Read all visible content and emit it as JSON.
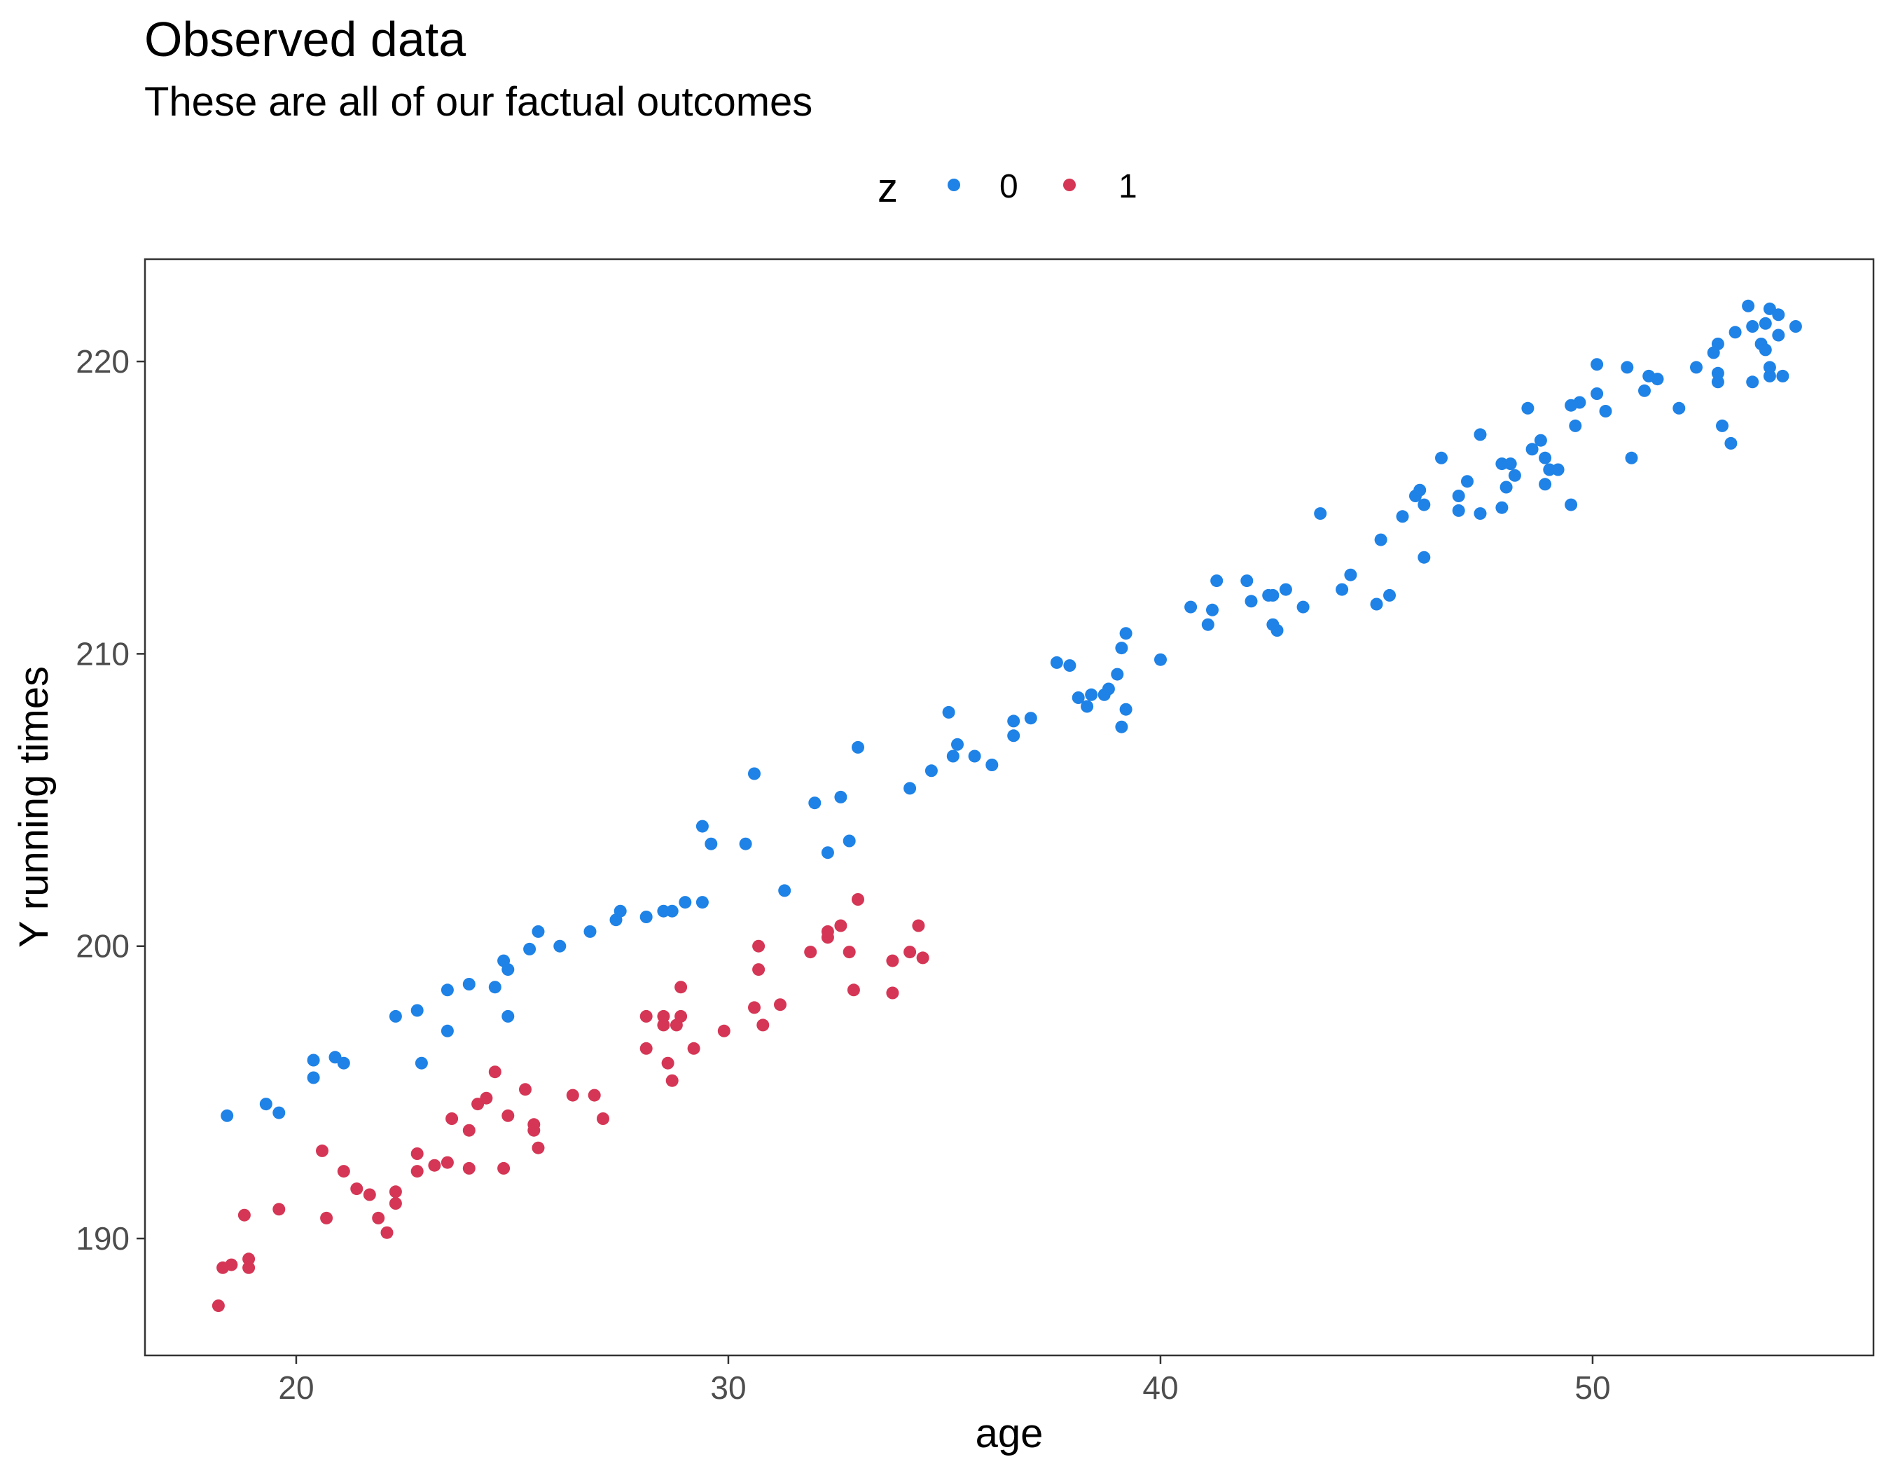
{
  "chart_data": {
    "type": "scatter",
    "title": "Observed data",
    "subtitle": "These are all of our factual outcomes",
    "xlabel": "age",
    "ylabel": "Y running times",
    "xlim": [
      16.5,
      56.5
    ],
    "ylim": [
      186.0,
      223.5
    ],
    "xticks": [
      20,
      30,
      40,
      50
    ],
    "yticks": [
      190,
      200,
      210,
      220
    ],
    "grid": false,
    "legend": {
      "title": "z",
      "position": "top"
    },
    "series": [
      {
        "name": "0",
        "color": "#1e82e6",
        "points": [
          [
            18.4,
            194.2
          ],
          [
            19.3,
            194.6
          ],
          [
            19.6,
            194.3
          ],
          [
            20.4,
            195.5
          ],
          [
            20.4,
            196.1
          ],
          [
            20.9,
            196.2
          ],
          [
            21.1,
            196.0
          ],
          [
            22.3,
            197.6
          ],
          [
            22.8,
            197.8
          ],
          [
            22.9,
            196.0
          ],
          [
            23.5,
            197.1
          ],
          [
            23.5,
            198.5
          ],
          [
            24.0,
            198.7
          ],
          [
            24.6,
            198.6
          ],
          [
            24.8,
            199.5
          ],
          [
            24.9,
            199.2
          ],
          [
            24.9,
            197.6
          ],
          [
            25.4,
            199.9
          ],
          [
            25.6,
            200.5
          ],
          [
            26.1,
            200.0
          ],
          [
            26.8,
            200.5
          ],
          [
            27.4,
            200.9
          ],
          [
            27.5,
            201.2
          ],
          [
            28.1,
            201.0
          ],
          [
            28.5,
            201.2
          ],
          [
            28.7,
            201.2
          ],
          [
            29.0,
            201.5
          ],
          [
            29.4,
            201.5
          ],
          [
            29.4,
            204.1
          ],
          [
            29.6,
            203.5
          ],
          [
            30.4,
            203.5
          ],
          [
            30.6,
            205.9
          ],
          [
            31.3,
            201.9
          ],
          [
            32.0,
            204.9
          ],
          [
            32.3,
            203.2
          ],
          [
            32.6,
            205.1
          ],
          [
            32.8,
            203.6
          ],
          [
            33.0,
            206.8
          ],
          [
            34.2,
            205.4
          ],
          [
            34.7,
            206.0
          ],
          [
            35.1,
            208.0
          ],
          [
            35.2,
            206.5
          ],
          [
            35.3,
            206.9
          ],
          [
            35.7,
            206.5
          ],
          [
            36.1,
            206.2
          ],
          [
            36.6,
            207.7
          ],
          [
            36.6,
            207.2
          ],
          [
            37.0,
            207.8
          ],
          [
            37.6,
            209.7
          ],
          [
            37.9,
            209.6
          ],
          [
            38.1,
            208.5
          ],
          [
            38.3,
            208.2
          ],
          [
            38.4,
            208.6
          ],
          [
            38.7,
            208.6
          ],
          [
            38.8,
            208.8
          ],
          [
            39.0,
            209.3
          ],
          [
            39.1,
            210.2
          ],
          [
            39.1,
            207.5
          ],
          [
            39.2,
            208.1
          ],
          [
            39.2,
            210.7
          ],
          [
            40.0,
            209.8
          ],
          [
            40.7,
            211.6
          ],
          [
            41.1,
            211.0
          ],
          [
            41.2,
            211.5
          ],
          [
            41.3,
            212.5
          ],
          [
            42.0,
            212.5
          ],
          [
            42.1,
            211.8
          ],
          [
            42.5,
            212.0
          ],
          [
            42.6,
            212.0
          ],
          [
            42.6,
            211.0
          ],
          [
            42.7,
            210.8
          ],
          [
            42.9,
            212.2
          ],
          [
            43.3,
            211.6
          ],
          [
            43.7,
            214.8
          ],
          [
            44.2,
            212.2
          ],
          [
            44.4,
            212.7
          ],
          [
            45.0,
            211.7
          ],
          [
            45.1,
            213.9
          ],
          [
            45.3,
            212.0
          ],
          [
            45.6,
            214.7
          ],
          [
            45.9,
            215.4
          ],
          [
            46.0,
            215.6
          ],
          [
            46.1,
            215.1
          ],
          [
            46.1,
            213.3
          ],
          [
            46.5,
            216.7
          ],
          [
            46.9,
            215.4
          ],
          [
            46.9,
            214.9
          ],
          [
            47.1,
            215.9
          ],
          [
            47.4,
            214.8
          ],
          [
            47.4,
            217.5
          ],
          [
            47.9,
            216.5
          ],
          [
            47.9,
            215.0
          ],
          [
            48.0,
            215.7
          ],
          [
            48.1,
            216.5
          ],
          [
            48.2,
            216.1
          ],
          [
            48.5,
            218.4
          ],
          [
            48.6,
            217.0
          ],
          [
            48.8,
            217.3
          ],
          [
            48.9,
            216.7
          ],
          [
            48.9,
            215.8
          ],
          [
            49.0,
            216.3
          ],
          [
            49.2,
            216.3
          ],
          [
            49.5,
            218.5
          ],
          [
            49.5,
            215.1
          ],
          [
            49.6,
            217.8
          ],
          [
            49.7,
            218.6
          ],
          [
            50.1,
            219.9
          ],
          [
            50.1,
            218.9
          ],
          [
            50.3,
            218.3
          ],
          [
            50.8,
            219.8
          ],
          [
            50.9,
            216.7
          ],
          [
            51.2,
            219.0
          ],
          [
            51.3,
            219.5
          ],
          [
            51.5,
            219.4
          ],
          [
            52.0,
            218.4
          ],
          [
            52.4,
            219.8
          ],
          [
            52.8,
            220.3
          ],
          [
            52.9,
            219.3
          ],
          [
            52.9,
            220.6
          ],
          [
            52.9,
            219.6
          ],
          [
            53.0,
            217.8
          ],
          [
            53.2,
            217.2
          ],
          [
            53.3,
            221.0
          ],
          [
            53.6,
            221.9
          ],
          [
            53.7,
            221.2
          ],
          [
            53.7,
            219.3
          ],
          [
            53.9,
            220.6
          ],
          [
            54.0,
            221.3
          ],
          [
            54.0,
            220.4
          ],
          [
            54.1,
            219.8
          ],
          [
            54.1,
            221.8
          ],
          [
            54.1,
            219.5
          ],
          [
            54.3,
            221.6
          ],
          [
            54.3,
            220.9
          ],
          [
            54.4,
            219.5
          ],
          [
            54.7,
            221.2
          ]
        ]
      },
      {
        "name": "1",
        "color": "#d53655",
        "points": [
          [
            18.2,
            187.7
          ],
          [
            18.3,
            189.0
          ],
          [
            18.5,
            189.1
          ],
          [
            18.8,
            190.8
          ],
          [
            18.9,
            189.3
          ],
          [
            18.9,
            189.0
          ],
          [
            19.6,
            191.0
          ],
          [
            20.6,
            193.0
          ],
          [
            20.7,
            190.7
          ],
          [
            21.1,
            192.3
          ],
          [
            21.4,
            191.7
          ],
          [
            21.7,
            191.5
          ],
          [
            21.9,
            190.7
          ],
          [
            22.1,
            190.2
          ],
          [
            22.3,
            191.6
          ],
          [
            22.3,
            191.2
          ],
          [
            22.8,
            192.9
          ],
          [
            22.8,
            192.3
          ],
          [
            23.2,
            192.5
          ],
          [
            23.5,
            192.6
          ],
          [
            23.6,
            194.1
          ],
          [
            24.0,
            192.4
          ],
          [
            24.0,
            193.7
          ],
          [
            24.2,
            194.6
          ],
          [
            24.4,
            194.8
          ],
          [
            24.6,
            195.7
          ],
          [
            24.8,
            192.4
          ],
          [
            24.9,
            194.2
          ],
          [
            25.3,
            195.1
          ],
          [
            25.5,
            193.9
          ],
          [
            25.5,
            193.7
          ],
          [
            25.6,
            193.1
          ],
          [
            26.4,
            194.9
          ],
          [
            26.9,
            194.9
          ],
          [
            27.1,
            194.1
          ],
          [
            28.1,
            196.5
          ],
          [
            28.1,
            197.6
          ],
          [
            28.5,
            197.6
          ],
          [
            28.5,
            197.3
          ],
          [
            28.6,
            196.0
          ],
          [
            28.7,
            195.4
          ],
          [
            28.8,
            197.3
          ],
          [
            28.9,
            197.6
          ],
          [
            28.9,
            198.6
          ],
          [
            29.2,
            196.5
          ],
          [
            29.9,
            197.1
          ],
          [
            30.6,
            197.9
          ],
          [
            30.7,
            199.2
          ],
          [
            30.7,
            200.0
          ],
          [
            30.8,
            197.3
          ],
          [
            31.2,
            198.0
          ],
          [
            31.9,
            199.8
          ],
          [
            32.3,
            200.3
          ],
          [
            32.3,
            200.5
          ],
          [
            32.6,
            200.7
          ],
          [
            32.8,
            199.8
          ],
          [
            32.9,
            198.5
          ],
          [
            33.0,
            201.6
          ],
          [
            33.8,
            199.5
          ],
          [
            33.8,
            198.4
          ],
          [
            34.2,
            199.8
          ],
          [
            34.4,
            200.7
          ],
          [
            34.5,
            199.6
          ]
        ]
      }
    ]
  }
}
